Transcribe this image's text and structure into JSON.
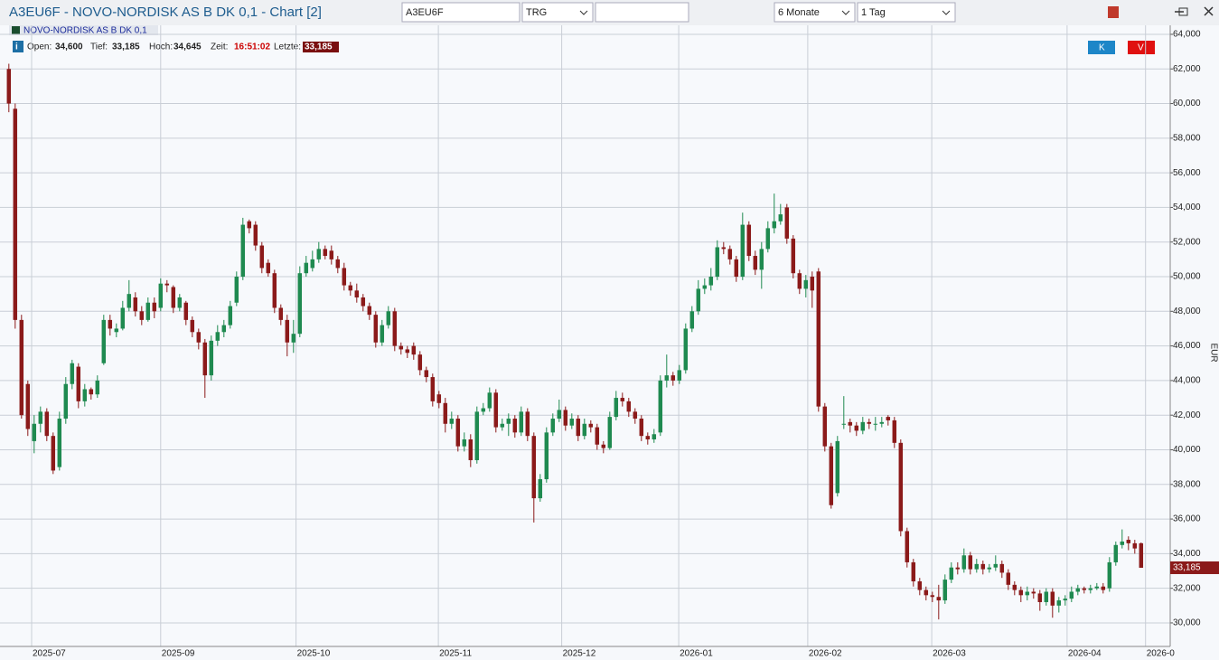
{
  "window": {
    "title": "A3EU6F - NOVO-NORDISK AS B  DK 0,1 - Chart [2]",
    "symbol_input": "A3EU6F",
    "exchange": "TRG",
    "period": "6 Monate",
    "interval": "1 Tag",
    "buttons": [
      "K",
      "V"
    ]
  },
  "info": {
    "legend": "NOVO-NORDISK AS B  DK 0,1",
    "fields": [
      {
        "label": "Open:",
        "value": "34,600"
      },
      {
        "label": "Tief:",
        "value": "33,185"
      },
      {
        "label": "Hoch:",
        "value": "34,645"
      },
      {
        "label": "Zeit:",
        "value": "16:51:02"
      },
      {
        "label": "Letzte:",
        "value": "33,185"
      }
    ]
  },
  "chart_data": {
    "type": "candlestick",
    "y_label": "EUR",
    "grid": true,
    "up_color": "#1f8a50",
    "down_color": "#8b1a1a",
    "xlim": [
      -1.4,
      183.6
    ],
    "xticks": [
      {
        "value": 3.6,
        "label": "2025-07"
      },
      {
        "value": 24,
        "label": "2025-09"
      },
      {
        "value": 45.4,
        "label": "2025-10"
      },
      {
        "value": 67.9,
        "label": "2025-11"
      },
      {
        "value": 87.4,
        "label": "2025-12"
      },
      {
        "value": 105.9,
        "label": "2026-01"
      },
      {
        "value": 126.3,
        "label": "2026-02"
      },
      {
        "value": 145.9,
        "label": "2026-03"
      },
      {
        "value": 167.3,
        "label": "2026-04"
      },
      {
        "value": 179.7,
        "label": "2026-0"
      }
    ],
    "ylim": [
      28.64,
      64.52
    ],
    "yticks": [
      {
        "value": 30,
        "label": "30,000"
      },
      {
        "value": 32,
        "label": "32,000"
      },
      {
        "value": 34,
        "label": "34,000"
      },
      {
        "value": 36,
        "label": "36,000"
      },
      {
        "value": 38,
        "label": "38,000"
      },
      {
        "value": 40,
        "label": "40,000"
      },
      {
        "value": 42,
        "label": "42,000"
      },
      {
        "value": 44,
        "label": "44,000"
      },
      {
        "value": 46,
        "label": "46,000"
      },
      {
        "value": 48,
        "label": "48,000"
      },
      {
        "value": 50,
        "label": "50,000"
      },
      {
        "value": 52,
        "label": "52,000"
      },
      {
        "value": 54,
        "label": "54,000"
      },
      {
        "value": 56,
        "label": "56,000"
      },
      {
        "value": 58,
        "label": "58,000"
      },
      {
        "value": 60,
        "label": "60,000"
      },
      {
        "value": 62,
        "label": "62,000"
      },
      {
        "value": 64,
        "label": "64,000"
      }
    ],
    "price_marker": {
      "value": 33.185,
      "label": "33,185"
    },
    "ohlc": [
      [
        62,
        62.3,
        59.5,
        60
      ],
      [
        59.7,
        60,
        47,
        47.5
      ],
      [
        47.5,
        47.8,
        41.8,
        42
      ],
      [
        43.8,
        44,
        40.8,
        41.2
      ],
      [
        40.5,
        42,
        39.8,
        41.5
      ],
      [
        41.5,
        42.5,
        41,
        42.2
      ],
      [
        42.2,
        42.4,
        40.5,
        40.8
      ],
      [
        40.8,
        41,
        38.6,
        38.8
      ],
      [
        39,
        42.2,
        38.8,
        41.8
      ],
      [
        41.8,
        44.2,
        41.5,
        43.8
      ],
      [
        43.8,
        45.2,
        43.5,
        45
      ],
      [
        44.8,
        45,
        42.4,
        42.8
      ],
      [
        42.8,
        43.8,
        42.5,
        43.5
      ],
      [
        43.5,
        43.6,
        42.9,
        43.2
      ],
      [
        43.2,
        44.3,
        43,
        44
      ],
      [
        45,
        47.8,
        44.9,
        47.5
      ],
      [
        47.5,
        47.8,
        46.6,
        47
      ],
      [
        46.8,
        47.3,
        46.5,
        47
      ],
      [
        47,
        48.6,
        46.9,
        48.2
      ],
      [
        48.2,
        49.8,
        48,
        49
      ],
      [
        48.8,
        49.1,
        47.7,
        48
      ],
      [
        48,
        48.3,
        47.2,
        47.5
      ],
      [
        47.5,
        48.8,
        47.4,
        48.5
      ],
      [
        48.5,
        48.8,
        47.6,
        48
      ],
      [
        48.2,
        49.9,
        48,
        49.6
      ],
      [
        49.6,
        49.8,
        49.1,
        49.5
      ],
      [
        49.4,
        49.5,
        47.9,
        48.2
      ],
      [
        48.2,
        49,
        48,
        48.8
      ],
      [
        48.5,
        48.6,
        47.2,
        47.5
      ],
      [
        47.5,
        47.7,
        46.5,
        46.8
      ],
      [
        46.8,
        47,
        45.8,
        46.2
      ],
      [
        46.2,
        46.4,
        43,
        44.3
      ],
      [
        44.3,
        46.6,
        44,
        46.3
      ],
      [
        46.3,
        47.2,
        46,
        46.8
      ],
      [
        46.8,
        47.5,
        46.5,
        47.2
      ],
      [
        47.2,
        48.6,
        47,
        48.3
      ],
      [
        48.5,
        50.3,
        48.3,
        50
      ],
      [
        50,
        53.4,
        49.8,
        53
      ],
      [
        53.2,
        53.3,
        52.5,
        52.8
      ],
      [
        53,
        53.2,
        51.5,
        51.8
      ],
      [
        51.8,
        52,
        50.2,
        50.5
      ],
      [
        50.8,
        51,
        50,
        50.2
      ],
      [
        50.2,
        50.4,
        47.9,
        48.2
      ],
      [
        48.2,
        48.4,
        47.2,
        47.5
      ],
      [
        47.5,
        47.8,
        45.4,
        46.2
      ],
      [
        46.2,
        47.5,
        45.6,
        46.7
      ],
      [
        46.7,
        50.6,
        46.5,
        50.2
      ],
      [
        50.2,
        51.2,
        50,
        50.8
      ],
      [
        50.5,
        51.5,
        50.3,
        51
      ],
      [
        51,
        52,
        50.8,
        51.6
      ],
      [
        51.6,
        51.8,
        51,
        51.2
      ],
      [
        51.5,
        51.8,
        50.7,
        51
      ],
      [
        51,
        51.2,
        50.2,
        50.5
      ],
      [
        50.5,
        50.8,
        49.2,
        49.5
      ],
      [
        49.5,
        49.7,
        48.9,
        49.2
      ],
      [
        49.2,
        49.6,
        48.5,
        48.8
      ],
      [
        48.8,
        49,
        48,
        48.3
      ],
      [
        48.3,
        48.5,
        47.5,
        47.8
      ],
      [
        47.8,
        48,
        45.9,
        46.2
      ],
      [
        46.2,
        47.5,
        46,
        47.2
      ],
      [
        47.2,
        48.3,
        47,
        48
      ],
      [
        48,
        48.2,
        45.7,
        46
      ],
      [
        46,
        46.2,
        45.5,
        45.8
      ],
      [
        45.8,
        46,
        45.3,
        45.6
      ],
      [
        46,
        46.2,
        45.2,
        45.5
      ],
      [
        45.5,
        45.7,
        44.3,
        44.6
      ],
      [
        44.6,
        44.8,
        43.9,
        44.2
      ],
      [
        44.2,
        44.4,
        42.5,
        42.8
      ],
      [
        43.2,
        43.4,
        42.4,
        42.7
      ],
      [
        42.7,
        43,
        41,
        41.5
      ],
      [
        41.5,
        42.2,
        41.2,
        41.8
      ],
      [
        41.8,
        42,
        39.9,
        40.2
      ],
      [
        40.2,
        41,
        39.9,
        40.6
      ],
      [
        40.6,
        40.9,
        39,
        39.4
      ],
      [
        39.4,
        42.5,
        39.2,
        42.2
      ],
      [
        42.2,
        42.7,
        42,
        42.4
      ],
      [
        42.4,
        43.6,
        42.2,
        43.3
      ],
      [
        43.3,
        43.5,
        41,
        41.3
      ],
      [
        41.3,
        41.8,
        41.1,
        41.5
      ],
      [
        41.5,
        42.1,
        40.8,
        41.8
      ],
      [
        41.8,
        42,
        40.7,
        41
      ],
      [
        41,
        42.5,
        40.8,
        42.2
      ],
      [
        42.2,
        42.4,
        40.5,
        40.8
      ],
      [
        40.8,
        41,
        35.8,
        37.2
      ],
      [
        37.2,
        38.6,
        37,
        38.3
      ],
      [
        38.3,
        41.3,
        38.1,
        41
      ],
      [
        41,
        42.1,
        40.8,
        41.8
      ],
      [
        41.8,
        42.9,
        41.6,
        42.3
      ],
      [
        42.3,
        42.5,
        41.1,
        41.4
      ],
      [
        41.4,
        42.1,
        41.2,
        41.8
      ],
      [
        41.8,
        42,
        40.5,
        40.8
      ],
      [
        40.8,
        41.8,
        40.6,
        41.5
      ],
      [
        41.5,
        41.7,
        41,
        41.3
      ],
      [
        41.3,
        41.5,
        40,
        40.3
      ],
      [
        40.3,
        40.5,
        39.8,
        40.1
      ],
      [
        40.1,
        42.2,
        40,
        41.9
      ],
      [
        41.9,
        43.4,
        41.7,
        43
      ],
      [
        43,
        43.3,
        42.5,
        42.8
      ],
      [
        42.8,
        43,
        41.9,
        42.2
      ],
      [
        42.2,
        42.4,
        41.5,
        41.8
      ],
      [
        41.8,
        42,
        40.5,
        40.8
      ],
      [
        40.8,
        41,
        40.3,
        40.6
      ],
      [
        40.6,
        41.2,
        40.4,
        40.9
      ],
      [
        41,
        44.3,
        40.8,
        44
      ],
      [
        44,
        45.5,
        43.6,
        44.3
      ],
      [
        44.3,
        44.5,
        43.7,
        44
      ],
      [
        44,
        44.9,
        43.8,
        44.6
      ],
      [
        44.6,
        47.3,
        44.4,
        47
      ],
      [
        47,
        48.3,
        46.8,
        48
      ],
      [
        48,
        49.8,
        47.8,
        49.3
      ],
      [
        49.3,
        49.9,
        49,
        49.5
      ],
      [
        49.5,
        50.5,
        49.2,
        50
      ],
      [
        50,
        52.1,
        49.8,
        51.7
      ],
      [
        51.7,
        52,
        51.3,
        51.6
      ],
      [
        51.6,
        51.8,
        50.7,
        51
      ],
      [
        51,
        51.2,
        49.7,
        50
      ],
      [
        50,
        53.7,
        49.8,
        53
      ],
      [
        53,
        53.2,
        50.9,
        51.2
      ],
      [
        51.2,
        51.5,
        50.1,
        50.4
      ],
      [
        50.4,
        52,
        49.3,
        51.6
      ],
      [
        51.6,
        53.2,
        51.4,
        52.8
      ],
      [
        52.8,
        54.8,
        52.5,
        53.2
      ],
      [
        53.2,
        54.2,
        53,
        53.6
      ],
      [
        54,
        54.2,
        51.9,
        52.2
      ],
      [
        52.2,
        52.4,
        49.9,
        50.2
      ],
      [
        50.2,
        50.4,
        49,
        49.3
      ],
      [
        49.3,
        50.1,
        48.8,
        49.8
      ],
      [
        50,
        50.3,
        48.2,
        49.2
      ],
      [
        50.3,
        50.5,
        42.2,
        42.5
      ],
      [
        42.5,
        42.7,
        39.9,
        40.2
      ],
      [
        40.2,
        40.4,
        36.6,
        36.8
      ],
      [
        37.5,
        40.8,
        37.3,
        40.5
      ],
      [
        41.5,
        43.1,
        41.2,
        41.5
      ],
      [
        41.6,
        41.8,
        41,
        41.4
      ],
      [
        41.4,
        41.6,
        40.8,
        41.1
      ],
      [
        41.1,
        41.9,
        40.9,
        41.6
      ],
      [
        41.6,
        41.8,
        41.2,
        41.5
      ],
      [
        41.5,
        41.9,
        41.1,
        41.5
      ],
      [
        41.5,
        41.9,
        41.3,
        41.6
      ],
      [
        41.9,
        42,
        41.4,
        41.7
      ],
      [
        41.7,
        41.9,
        40.1,
        40.4
      ],
      [
        40.4,
        40.6,
        35,
        35.3
      ],
      [
        35.3,
        35.5,
        33.2,
        33.5
      ],
      [
        33.5,
        33.7,
        32.1,
        32.4
      ],
      [
        32.4,
        32.6,
        31.6,
        31.9
      ],
      [
        31.9,
        32.1,
        31.3,
        31.6
      ],
      [
        31.6,
        31.8,
        31.2,
        31.5
      ],
      [
        31.5,
        32.2,
        30.2,
        31.3
      ],
      [
        31.3,
        32.8,
        31.1,
        32.5
      ],
      [
        32.5,
        33.5,
        32.3,
        33.2
      ],
      [
        33.2,
        33.5,
        32.8,
        33.1
      ],
      [
        33.1,
        34.3,
        32.9,
        33.9
      ],
      [
        33.9,
        34.1,
        32.8,
        33.1
      ],
      [
        33.1,
        33.7,
        32.9,
        33.4
      ],
      [
        33.4,
        33.6,
        32.8,
        33.1
      ],
      [
        33.1,
        33.4,
        32.9,
        33.2
      ],
      [
        33.2,
        33.9,
        33,
        33.4
      ],
      [
        33.4,
        33.6,
        32.6,
        32.9
      ],
      [
        32.9,
        33.1,
        31.9,
        32.2
      ],
      [
        32.2,
        32.4,
        31.6,
        31.9
      ],
      [
        31.9,
        32.1,
        31.2,
        31.6
      ],
      [
        31.6,
        32.1,
        31.3,
        31.8
      ],
      [
        31.8,
        32,
        31.4,
        31.7
      ],
      [
        31.7,
        31.9,
        30.7,
        31.2
      ],
      [
        31.2,
        32,
        31,
        31.8
      ],
      [
        31.8,
        32,
        30.3,
        31
      ],
      [
        31,
        31.5,
        30.6,
        31.3
      ],
      [
        31.3,
        31.6,
        31,
        31.4
      ],
      [
        31.4,
        32.1,
        31.2,
        31.8
      ],
      [
        31.8,
        32.2,
        31.6,
        32
      ],
      [
        32,
        32.1,
        31.7,
        31.9
      ],
      [
        31.9,
        32.2,
        31.7,
        32
      ],
      [
        32,
        32.3,
        31.9,
        32.1
      ],
      [
        32.1,
        32.3,
        31.7,
        31.9
      ],
      [
        32,
        33.8,
        31.8,
        33.5
      ],
      [
        33.5,
        34.7,
        33.3,
        34.5
      ],
      [
        34.5,
        35.4,
        34.3,
        34.7
      ],
      [
        34.8,
        35,
        34.2,
        34.6
      ],
      [
        34.6,
        34.8,
        34,
        34.3
      ],
      [
        34.6,
        34.645,
        33.185,
        33.185
      ]
    ]
  }
}
